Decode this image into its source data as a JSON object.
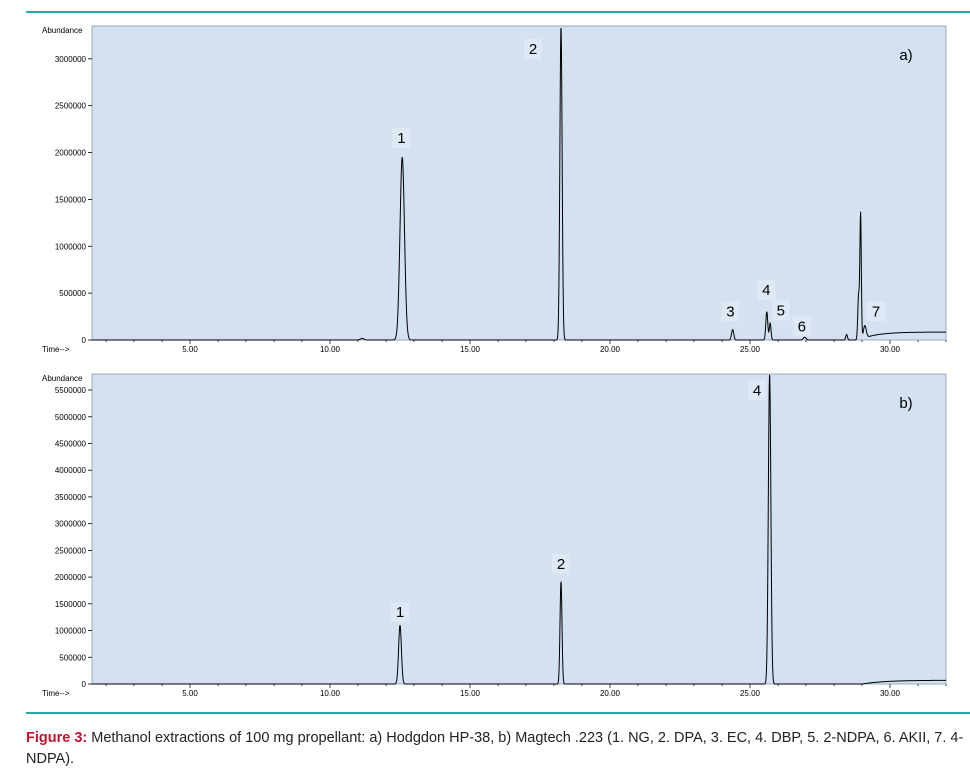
{
  "figure": {
    "caption_label": "Figure 3:",
    "caption_text": " Methanol extractions of 100 mg propellant: a) Hodgdon HP-38, b) Magtech .223 (1. NG, 2. DPA, 3. EC, 4. DBP, 5. 2-NDPA, 6. AKII, 7. 4-NDPA).",
    "colors": {
      "plot_bg": "#d3e1f1",
      "trace": "#000000",
      "rule": "#2aa6a6",
      "caption_label": "#c8102e"
    }
  },
  "chart_data": [
    {
      "type": "line",
      "panel_label": "a)",
      "ylabel": "Abundance",
      "xlabel": "Time-->",
      "xlim": [
        1.5,
        32.0
      ],
      "ylim": [
        0,
        3350000
      ],
      "x_ticks": [
        "5.00",
        "10.00",
        "15.00",
        "20.00",
        "25.00",
        "30.00"
      ],
      "x_tick_values": [
        5,
        10,
        15,
        20,
        25,
        30
      ],
      "y_ticks": [
        "0",
        "500000",
        "1000000",
        "1500000",
        "2000000",
        "2500000",
        "3000000"
      ],
      "y_tick_values": [
        0,
        500000,
        1000000,
        1500000,
        2000000,
        2500000,
        3000000
      ],
      "peaks": [
        {
          "x": 11.15,
          "y": 18000,
          "w": 0.06
        },
        {
          "x": 12.58,
          "y": 1950000,
          "w": 0.08
        },
        {
          "x": 18.25,
          "y": 3350000,
          "w": 0.04
        },
        {
          "x": 24.38,
          "y": 110000,
          "w": 0.04
        },
        {
          "x": 25.6,
          "y": 300000,
          "w": 0.035
        },
        {
          "x": 25.72,
          "y": 180000,
          "w": 0.03
        },
        {
          "x": 26.95,
          "y": 30000,
          "w": 0.05
        },
        {
          "x": 28.45,
          "y": 60000,
          "w": 0.03
        },
        {
          "x": 28.88,
          "y": 480000,
          "w": 0.03
        },
        {
          "x": 28.95,
          "y": 1330000,
          "w": 0.025
        },
        {
          "x": 29.1,
          "y": 130000,
          "w": 0.05
        }
      ],
      "baseline": {
        "start": 28.9,
        "end": 32.0,
        "level": 85000,
        "tau": 0.6
      },
      "peak_labels": [
        {
          "text": "1",
          "x": 12.55,
          "y": 2100000
        },
        {
          "text": "2",
          "x": 17.25,
          "y": 3050000
        },
        {
          "text": "3",
          "x": 24.3,
          "y": 250000
        },
        {
          "text": "4",
          "x": 25.58,
          "y": 480000
        },
        {
          "text": "5",
          "x": 26.1,
          "y": 260000
        },
        {
          "text": "6",
          "x": 26.85,
          "y": 90000
        },
        {
          "text": "7",
          "x": 29.5,
          "y": 250000
        }
      ]
    },
    {
      "type": "line",
      "panel_label": "b)",
      "ylabel": "Abundance",
      "xlabel": "Time-->",
      "xlim": [
        1.5,
        32.0
      ],
      "ylim": [
        0,
        5800000
      ],
      "x_ticks": [
        "5.00",
        "10.00",
        "15.00",
        "20.00",
        "25.00",
        "30.00"
      ],
      "x_tick_values": [
        5,
        10,
        15,
        20,
        25,
        30
      ],
      "y_ticks": [
        "0",
        "500000",
        "1000000",
        "1500000",
        "2000000",
        "2500000",
        "3000000",
        "3500000",
        "4000000",
        "4500000",
        "5000000",
        "5500000"
      ],
      "y_tick_values": [
        0,
        500000,
        1000000,
        1500000,
        2000000,
        2500000,
        3000000,
        3500000,
        4000000,
        4500000,
        5000000,
        5500000
      ],
      "peaks": [
        {
          "x": 12.5,
          "y": 1100000,
          "w": 0.05
        },
        {
          "x": 18.25,
          "y": 1920000,
          "w": 0.035
        },
        {
          "x": 25.7,
          "y": 5800000,
          "w": 0.045
        }
      ],
      "baseline": {
        "start": 29.0,
        "end": 32.0,
        "level": 70000,
        "tau": 0.8
      },
      "peak_labels": [
        {
          "text": "1",
          "x": 12.5,
          "y": 1250000
        },
        {
          "text": "2",
          "x": 18.25,
          "y": 2150000
        },
        {
          "text": "4",
          "x": 25.25,
          "y": 5400000
        }
      ]
    }
  ]
}
